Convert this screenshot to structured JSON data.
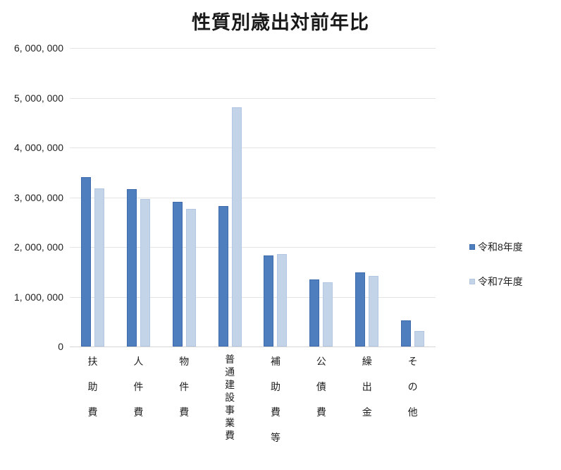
{
  "title": "性質別歳出対前年比",
  "chart_data": {
    "type": "bar",
    "title": "性質別歳出対前年比",
    "categories": [
      "扶助費",
      "人件費",
      "物件費",
      "普通建設事業費",
      "補助費等",
      "公債費",
      "繰出金",
      "その他"
    ],
    "series": [
      {
        "name": "令和8年度",
        "color": "#4e7ebd",
        "border_color": "#3d6bae",
        "values": [
          3400000,
          3160000,
          2910000,
          2820000,
          1830000,
          1350000,
          1490000,
          520000
        ]
      },
      {
        "name": "令和7年度",
        "color": "#c3d4e9",
        "border_color": "#b3c7e2",
        "values": [
          3180000,
          2960000,
          2760000,
          4810000,
          1860000,
          1290000,
          1420000,
          310000
        ]
      }
    ],
    "xlabel": "",
    "ylabel": "",
    "ylim": [
      0,
      6000000
    ],
    "y_tick_interval": 1000000,
    "y_tick_labels": [
      "0",
      "1, 000, 000",
      "2, 000, 000",
      "3, 000, 000",
      "4, 000, 000",
      "5, 000, 000",
      "6, 000, 000"
    ],
    "grid": true,
    "legend_position": "right",
    "colors": {
      "gridline": "#e4e4e4",
      "axis_line": "#d5d5d5",
      "text": "#1f1f1f",
      "title": "#1a1a1a",
      "background": "#ffffff"
    }
  }
}
